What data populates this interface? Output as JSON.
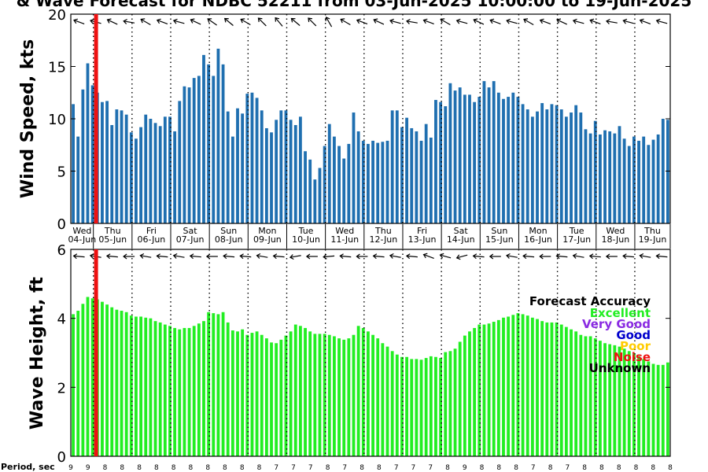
{
  "title": "& Wave Forecast for NDBC 52211 from 03-Jun-2025 10:00:00 to 19-Jun-2025",
  "colors": {
    "wind_bar": "#1f6fb0",
    "wave_bar": "#22ee22",
    "now_line": "#ee1111",
    "excellent": "#22ee22",
    "very_good": "#8a2be2",
    "good": "#0000cc",
    "poor": "#ffcc00",
    "noise": "#ee1111",
    "unknown": "#000000"
  },
  "period_label": "Period, sec",
  "days": [
    {
      "name": "Wed",
      "date": "04-Jun"
    },
    {
      "name": "Thu",
      "date": "05-Jun"
    },
    {
      "name": "Fri",
      "date": "06-Jun"
    },
    {
      "name": "Sat",
      "date": "07-Jun"
    },
    {
      "name": "Sun",
      "date": "08-Jun"
    },
    {
      "name": "Mon",
      "date": "09-Jun"
    },
    {
      "name": "Tue",
      "date": "10-Jun"
    },
    {
      "name": "Wed",
      "date": "11-Jun"
    },
    {
      "name": "Thu",
      "date": "12-Jun"
    },
    {
      "name": "Fri",
      "date": "13-Jun"
    },
    {
      "name": "Sat",
      "date": "14-Jun"
    },
    {
      "name": "Sun",
      "date": "15-Jun"
    },
    {
      "name": "Mon",
      "date": "16-Jun"
    },
    {
      "name": "Tue",
      "date": "17-Jun"
    },
    {
      "name": "Wed",
      "date": "18-Jun"
    },
    {
      "name": "Thu",
      "date": "19-Jun"
    }
  ],
  "legend": {
    "title": "Forecast Accuracy",
    "items": [
      {
        "label": "Excellent",
        "color": "#22ee22"
      },
      {
        "label": "Very Good",
        "color": "#8a2be2"
      },
      {
        "label": "Good",
        "color": "#0000cc"
      },
      {
        "label": "Poor",
        "color": "#ffcc00"
      },
      {
        "label": "Noise",
        "color": "#ee1111"
      },
      {
        "label": "Unknown",
        "color": "#000000"
      }
    ]
  },
  "chart_data": [
    {
      "type": "bar",
      "name": "wind",
      "ylabel": "Wind Speed, kts",
      "ylim": [
        0,
        20
      ],
      "yticks": [
        0,
        5,
        10,
        15,
        20
      ],
      "values": [
        11.4,
        8.3,
        12.8,
        15.3,
        13.2,
        12.5,
        11.6,
        11.7,
        9.4,
        10.9,
        10.8,
        10.4,
        8.7,
        8.1,
        9.2,
        10.4,
        10.0,
        9.6,
        9.3,
        10.2,
        10.2,
        8.8,
        11.7,
        13.1,
        13.0,
        13.9,
        14.1,
        16.1,
        15.2,
        14.1,
        16.7,
        15.2,
        10.7,
        8.3,
        11.0,
        10.5,
        12.4,
        12.5,
        12.0,
        10.8,
        9.1,
        8.7,
        9.9,
        10.8,
        10.8,
        9.9,
        9.4,
        10.2,
        6.9,
        6.1,
        4.2,
        5.3,
        7.4,
        9.5,
        8.3,
        7.4,
        6.2,
        7.6,
        10.6,
        8.8,
        7.9,
        7.6,
        7.9,
        7.7,
        7.8,
        7.9,
        10.8,
        10.8,
        9.2,
        10.1,
        9.1,
        8.8,
        7.9,
        9.5,
        8.2,
        11.8,
        11.6,
        11.2,
        13.4,
        12.7,
        13.0,
        12.3,
        12.3,
        11.6,
        12.1,
        13.6,
        13.0,
        13.6,
        12.5,
        11.9,
        12.1,
        12.5,
        12.1,
        11.4,
        10.9,
        10.2,
        10.7,
        11.5,
        10.9,
        11.4,
        11.3,
        10.9,
        10.2,
        10.6,
        11.3,
        10.6,
        9.0,
        8.6,
        9.8,
        8.5,
        8.9,
        8.8,
        8.6,
        9.3,
        8.1,
        7.4,
        8.3,
        7.9,
        8.3,
        7.5,
        8.0,
        8.5,
        10.0,
        9.9
      ]
    },
    {
      "type": "bar",
      "name": "wave",
      "ylabel": "Wave Height, ft",
      "ylim": [
        0,
        6
      ],
      "yticks": [
        0,
        2,
        4,
        6
      ],
      "values": [
        4.12,
        4.22,
        4.42,
        4.62,
        4.58,
        4.55,
        4.48,
        4.4,
        4.32,
        4.25,
        4.22,
        4.18,
        4.08,
        4.05,
        4.05,
        4.02,
        4.0,
        3.92,
        3.88,
        3.82,
        3.78,
        3.72,
        3.68,
        3.72,
        3.72,
        3.78,
        3.85,
        3.92,
        4.18,
        4.15,
        4.12,
        4.18,
        3.88,
        3.65,
        3.62,
        3.68,
        3.52,
        3.58,
        3.62,
        3.52,
        3.42,
        3.3,
        3.28,
        3.38,
        3.5,
        3.62,
        3.82,
        3.78,
        3.72,
        3.62,
        3.55,
        3.55,
        3.55,
        3.52,
        3.48,
        3.42,
        3.38,
        3.42,
        3.52,
        3.78,
        3.72,
        3.62,
        3.52,
        3.42,
        3.28,
        3.18,
        3.05,
        2.95,
        2.88,
        2.88,
        2.82,
        2.82,
        2.8,
        2.85,
        2.9,
        2.88,
        2.85,
        3.02,
        3.05,
        3.12,
        3.32,
        3.5,
        3.62,
        3.72,
        3.82,
        3.82,
        3.85,
        3.9,
        3.95,
        4.02,
        4.05,
        4.1,
        4.15,
        4.12,
        4.08,
        4.02,
        3.98,
        3.92,
        3.88,
        3.88,
        3.88,
        3.82,
        3.75,
        3.68,
        3.62,
        3.52,
        3.48,
        3.48,
        3.42,
        3.35,
        3.28,
        3.25,
        3.22,
        3.18,
        3.12,
        3.05,
        2.98,
        2.9,
        2.82,
        2.75,
        2.68,
        2.65,
        2.65,
        2.72
      ]
    }
  ],
  "periods": [
    9,
    9,
    8,
    8,
    8,
    8,
    8,
    8,
    8,
    8,
    8,
    8,
    7,
    7,
    7,
    8,
    7,
    8,
    8,
    7,
    7,
    7,
    8,
    9,
    8,
    8,
    8,
    7,
    8,
    7,
    8,
    8,
    8,
    8,
    8,
    8
  ]
}
